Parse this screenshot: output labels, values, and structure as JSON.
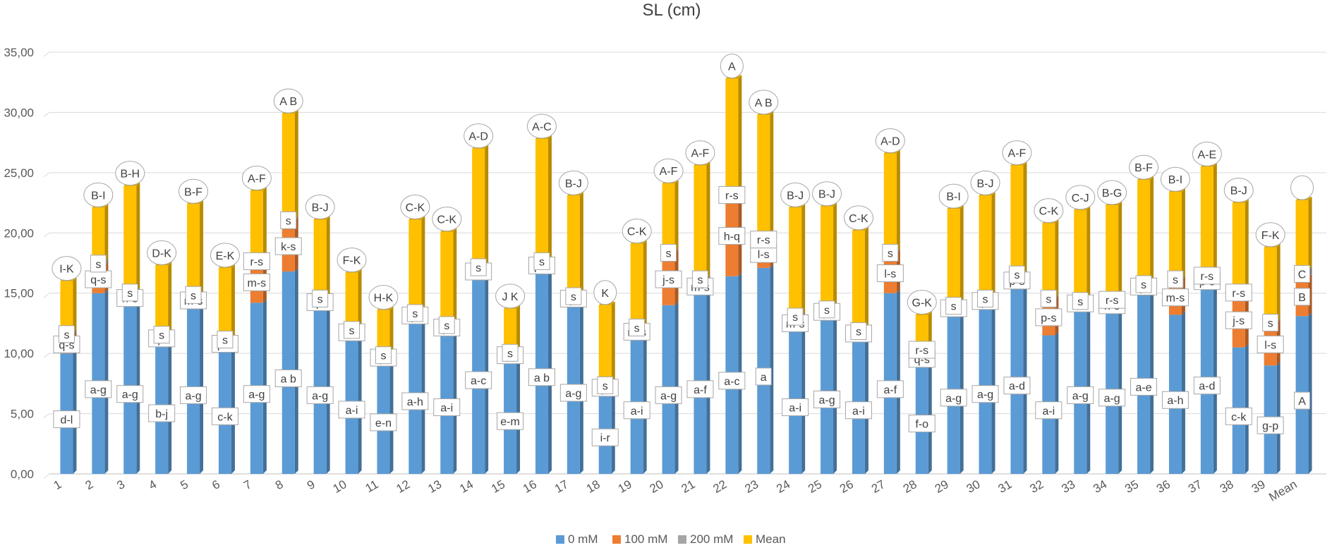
{
  "chart_data": {
    "type": "bar",
    "subtype": "stacked-3d",
    "title": "SL (cm)",
    "xlabel": "",
    "ylabel": "",
    "ylim": [
      0,
      35
    ],
    "yticks": [
      "0,00",
      "5,00",
      "10,00",
      "15,00",
      "20,00",
      "25,00",
      "30,00",
      "35,00"
    ],
    "categories": [
      "1",
      "2",
      "3",
      "4",
      "5",
      "6",
      "7",
      "8",
      "9",
      "10",
      "11",
      "12",
      "13",
      "14",
      "15",
      "16",
      "17",
      "18",
      "19",
      "20",
      "21",
      "22",
      "23",
      "24",
      "25",
      "26",
      "27",
      "28",
      "29",
      "30",
      "31",
      "32",
      "33",
      "34",
      "35",
      "36",
      "37",
      "38",
      "39",
      "Mean"
    ],
    "legend": [
      "0 mM",
      "100 mM",
      "200 mM",
      "Mean"
    ],
    "colors": {
      "0 mM": "#5B9BD5",
      "100 mM": "#ED7D31",
      "200 mM": "#A5A5A5",
      "Mean": "#FFC000"
    },
    "series": [
      {
        "name": "0 mM",
        "values": [
          10.0,
          15.0,
          14.2,
          11.0,
          14.0,
          10.5,
          14.2,
          16.8,
          14.0,
          11.6,
          9.5,
          13.0,
          12.0,
          16.5,
          9.7,
          17.0,
          14.4,
          7.0,
          11.5,
          14.0,
          15.0,
          16.4,
          17.1,
          12.0,
          13.3,
          11.5,
          15.0,
          9.3,
          13.6,
          14.2,
          15.6,
          11.5,
          14.0,
          13.6,
          15.4,
          13.2,
          15.6,
          10.5,
          9.0,
          13.1
        ],
        "letters": [
          "d-l",
          "a-g",
          "a-g",
          "b-j",
          "a-g",
          "c-k",
          "a-g",
          "a b",
          "a-g",
          "a-i",
          "e-n",
          "a-h",
          "a-i",
          "a-c",
          "e-m",
          "a b",
          "a-g",
          "i-r",
          "a-i",
          "a-g",
          "a-f",
          "a-c",
          "a",
          "a-i",
          "a-g",
          "a-i",
          "a-f",
          "f-o",
          "a-g",
          "a-g",
          "a-d",
          "a-i",
          "a-g",
          "a-g",
          "a-e",
          "a-h",
          "a-d",
          "c-k",
          "g-p",
          "A"
        ]
      },
      {
        "name": "100 mM",
        "values": [
          1.5,
          2.3,
          0.8,
          0.5,
          0.8,
          0.6,
          3.4,
          4.2,
          0.5,
          0.3,
          0.3,
          0.3,
          0.3,
          0.6,
          0.3,
          0.6,
          0.3,
          0.3,
          0.6,
          4.3,
          1.1,
          6.7,
          2.3,
          1.0,
          0.3,
          0.3,
          3.3,
          0.5,
          0.3,
          0.3,
          0.9,
          3.0,
          0.3,
          0.8,
          0.3,
          2.9,
          0.8,
          4.5,
          3.5,
          3.2
        ],
        "letters": [
          "q-s",
          "q-s",
          "n-s",
          "q-s",
          "m-s",
          "p-s",
          "m-s",
          "k-s",
          "q-s",
          "q-s",
          "q-s",
          "q-s",
          "q-s",
          "o-s",
          "q-s",
          "p-s",
          "q-s",
          "q-s",
          "m-s",
          "j-s",
          "m-s",
          "h-q",
          "l-s",
          "m-s",
          "q-s",
          "o-s",
          "l-s",
          "q-s",
          "o-s",
          "q-s",
          "p-s",
          "p-s",
          "q-s",
          "n-s",
          "q-s",
          "m-s",
          "p-s",
          "j-s",
          "l-s",
          "B"
        ]
      },
      {
        "name": "200 mM",
        "values": [
          0.2,
          0.3,
          0.1,
          0.1,
          0.1,
          0.1,
          0.1,
          0.1,
          0.1,
          0.1,
          0.1,
          0.1,
          0.1,
          0.1,
          0.1,
          0.1,
          0.1,
          0.1,
          0.1,
          0.1,
          0.1,
          0.1,
          0.1,
          0.1,
          0.1,
          0.1,
          0.1,
          1.0,
          0.1,
          0.1,
          0.1,
          0.1,
          0.1,
          0.1,
          0.1,
          0.1,
          0.1,
          0.1,
          0.1,
          0.6
        ],
        "letters": [
          "s",
          "s",
          "s",
          "s",
          "s",
          "s",
          "r-s",
          "s",
          "s",
          "s",
          "s",
          "s",
          "s",
          "s",
          "s",
          "s",
          "s",
          "s",
          "s",
          "s",
          "s",
          "r-s",
          "r-s",
          "s",
          "s",
          "s",
          "s",
          "r-s",
          "s",
          "s",
          "s",
          "s",
          "s",
          "r-s",
          "s",
          "s",
          "r-s",
          "r-s",
          "s",
          "C"
        ]
      },
      {
        "name": "Mean",
        "values": [
          4.3,
          4.5,
          8.8,
          5.7,
          7.5,
          5.9,
          5.8,
          8.8,
          6.5,
          4.7,
          3.7,
          7.7,
          7.7,
          9.8,
          3.6,
          10.1,
          8.3,
          6.6,
          6.9,
          5.7,
          9.4,
          9.6,
          10.3,
          9.0,
          8.5,
          8.3,
          8.2,
          2.4,
          8.0,
          8.5,
          9.0,
          6.2,
          7.5,
          7.8,
          8.6,
          7.2,
          9.0,
          7.4,
          6.2,
          5.8
        ],
        "letters": [
          "I-K",
          "B-I",
          "B-H",
          "D-K",
          "B-F",
          "E-K",
          "A-F",
          "A B",
          "B-J",
          "F-K",
          "H-K",
          "C-K",
          "C-K",
          "A-D",
          "J K",
          "A-C",
          "B-J",
          "K",
          "C-K",
          "A-F",
          "A-F",
          "A",
          "A B",
          "B-J",
          "B-J",
          "C-K",
          "A-D",
          "G-K",
          "B-I",
          "B-J",
          "A-F",
          "C-K",
          "C-J",
          "B-G",
          "B-F",
          "B-I",
          "A-E",
          "B-J",
          "F-K",
          ""
        ]
      }
    ]
  }
}
